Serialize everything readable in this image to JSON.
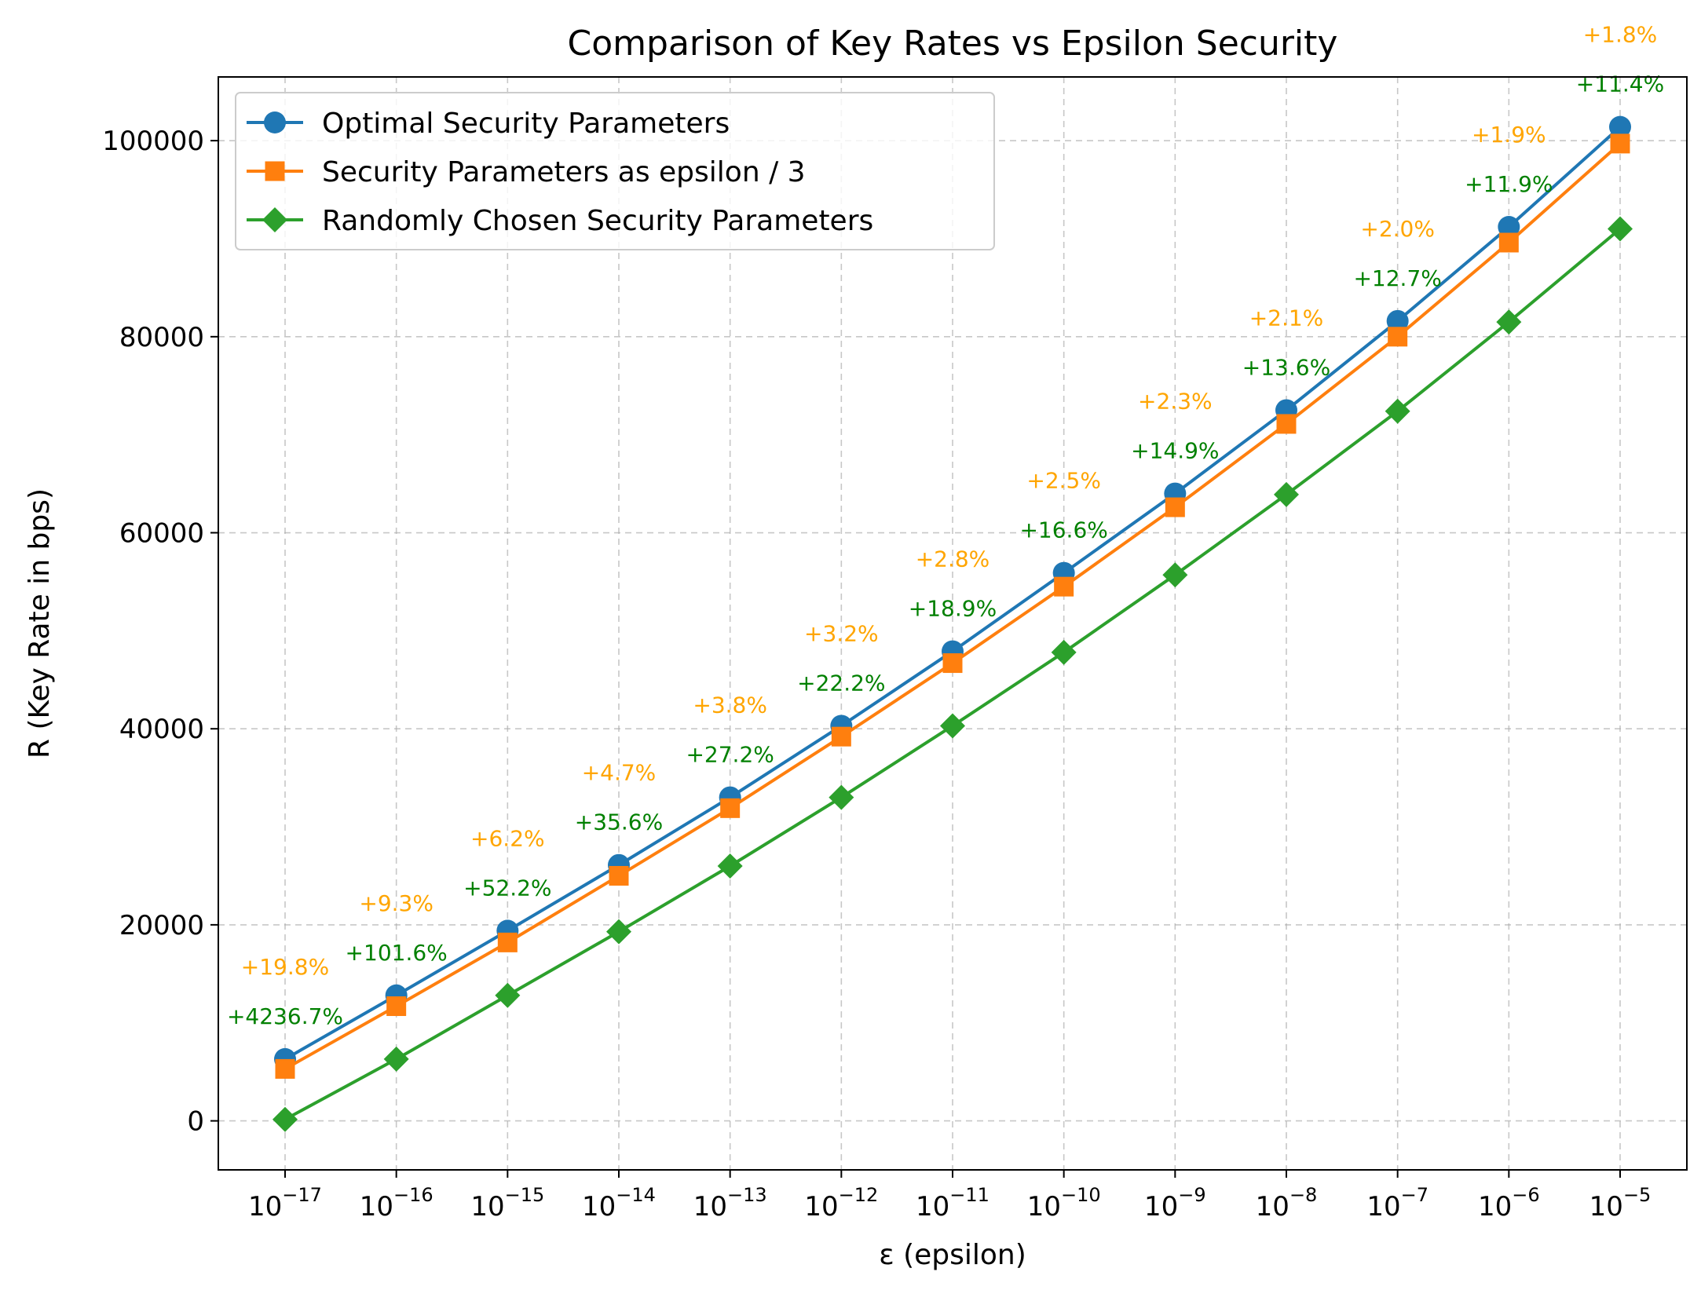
{
  "chart_data": {
    "type": "line",
    "title": "Comparison of Key Rates vs Epsilon Security",
    "xlabel": "ε (epsilon)",
    "ylabel": "R (Key Rate in bps)",
    "x_base": "10",
    "x_exponents": [
      "−17",
      "−16",
      "−15",
      "−14",
      "−13",
      "−12",
      "−11",
      "−10",
      "−9",
      "−8",
      "−7",
      "−6",
      "−5"
    ],
    "x": [
      -17,
      -16,
      -15,
      -14,
      -13,
      -12,
      -11,
      -10,
      -9,
      -8,
      -7,
      -6,
      -5
    ],
    "xlim": [
      -17.6,
      -4.4
    ],
    "ylim": [
      -5000,
      106500
    ],
    "yticks": [
      0,
      20000,
      40000,
      60000,
      80000,
      100000
    ],
    "ytick_labels": [
      "0",
      "20000",
      "40000",
      "60000",
      "80000",
      "100000"
    ],
    "grid": true,
    "legend_position": "top-left",
    "series": [
      {
        "name": "Optimal Security Parameters",
        "color": "#1f77b4",
        "marker": "circle",
        "values": [
          6300,
          12800,
          19400,
          26100,
          33000,
          40300,
          47900,
          55900,
          64000,
          72500,
          81600,
          91200,
          101400
        ]
      },
      {
        "name": "Security Parameters as epsilon / 3",
        "color": "#ff7f0e",
        "marker": "square",
        "values": [
          5300,
          11700,
          18200,
          25000,
          31900,
          39200,
          46700,
          54500,
          62600,
          71100,
          80000,
          89600,
          99700
        ]
      },
      {
        "name": "Randomly Chosen Security Parameters",
        "color": "#2ca02c",
        "marker": "diamond",
        "values": [
          150,
          6300,
          12800,
          19300,
          26000,
          33000,
          40300,
          47800,
          55700,
          63900,
          72400,
          81500,
          91000
        ]
      }
    ],
    "annotations_vs_epsilon3": {
      "color": "#ffa500",
      "labels": [
        "+19.8%",
        "+9.3%",
        "+6.2%",
        "+4.7%",
        "+3.8%",
        "+3.2%",
        "+2.8%",
        "+2.5%",
        "+2.3%",
        "+2.1%",
        "+2.0%",
        "+1.9%",
        "+1.8%"
      ]
    },
    "annotations_vs_random": {
      "color": "#008000",
      "labels": [
        "+4236.7%",
        "+101.6%",
        "+52.2%",
        "+35.6%",
        "+27.2%",
        "+22.2%",
        "+18.9%",
        "+16.6%",
        "+14.9%",
        "+13.6%",
        "+12.7%",
        "+11.9%",
        "+11.4%"
      ]
    }
  }
}
